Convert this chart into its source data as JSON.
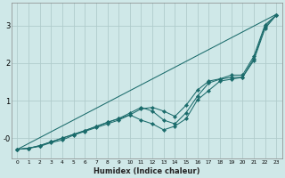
{
  "xlabel": "Humidex (Indice chaleur)",
  "ylabel": "",
  "bg_color": "#cfe8e8",
  "grid_color": "#b0cccc",
  "line_color": "#1a6b6b",
  "xlim": [
    -0.5,
    23.5
  ],
  "ylim": [
    -0.55,
    3.6
  ],
  "xticks": [
    0,
    1,
    2,
    3,
    4,
    5,
    6,
    7,
    8,
    9,
    10,
    11,
    12,
    13,
    14,
    15,
    16,
    17,
    18,
    19,
    20,
    21,
    22,
    23
  ],
  "yticks": [
    0,
    1,
    2,
    3
  ],
  "ytick_labels": [
    "-0",
    "1",
    "2",
    "3"
  ],
  "line_straight": {
    "x": [
      0,
      23
    ],
    "y": [
      -0.3,
      3.3
    ]
  },
  "line1": {
    "x": [
      0,
      1,
      2,
      3,
      4,
      5,
      6,
      7,
      8,
      9,
      10,
      11,
      12,
      13,
      14,
      15,
      16,
      17,
      18,
      19,
      20,
      21,
      22,
      23
    ],
    "y": [
      -0.3,
      -0.27,
      -0.22,
      -0.12,
      -0.05,
      0.08,
      0.18,
      0.28,
      0.38,
      0.48,
      0.62,
      0.78,
      0.82,
      0.72,
      0.58,
      0.88,
      1.28,
      1.52,
      1.58,
      1.68,
      1.68,
      2.18,
      3.02,
      3.28
    ]
  },
  "line2": {
    "x": [
      0,
      1,
      2,
      3,
      4,
      5,
      6,
      7,
      8,
      9,
      10,
      11,
      12,
      13,
      14,
      15,
      16,
      17,
      18,
      19,
      20,
      21,
      22,
      23
    ],
    "y": [
      -0.3,
      -0.27,
      -0.2,
      -0.1,
      0.0,
      0.1,
      0.2,
      0.31,
      0.42,
      0.52,
      0.67,
      0.82,
      0.72,
      0.48,
      0.38,
      0.68,
      1.12,
      1.47,
      1.57,
      1.62,
      1.62,
      2.12,
      2.97,
      3.28
    ]
  },
  "line3": {
    "x": [
      0,
      1,
      2,
      3,
      4,
      5,
      6,
      7,
      8,
      9,
      10,
      11,
      12,
      13,
      14,
      15,
      16,
      17,
      18,
      19,
      20,
      21,
      22,
      23
    ],
    "y": [
      -0.3,
      -0.27,
      -0.2,
      -0.1,
      0.0,
      0.1,
      0.2,
      0.31,
      0.42,
      0.52,
      0.62,
      0.48,
      0.38,
      0.22,
      0.32,
      0.52,
      1.02,
      1.27,
      1.52,
      1.57,
      1.62,
      2.07,
      2.92,
      3.28
    ]
  }
}
